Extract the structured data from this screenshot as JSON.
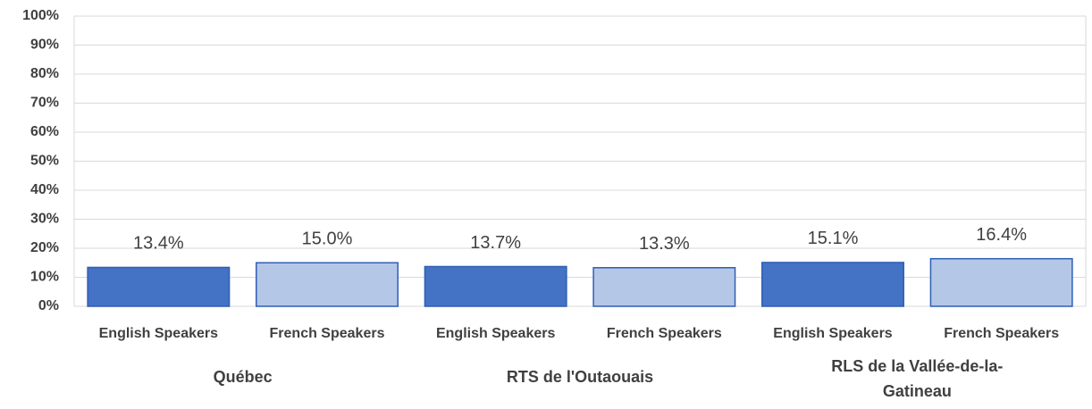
{
  "chart_data": {
    "type": "bar",
    "categories": [
      "English Speakers",
      "French Speakers",
      "English Speakers",
      "French Speakers",
      "English Speakers",
      "French Speakers"
    ],
    "groups": [
      "Québec",
      "RTS de l'Outaouais",
      "RLS de la Vallée-de-la-Gatineau"
    ],
    "values": [
      13.4,
      15.0,
      13.7,
      13.3,
      15.1,
      16.4
    ],
    "value_labels": [
      "13.4%",
      "15.0%",
      "13.7%",
      "13.3%",
      "15.1%",
      "16.4%"
    ],
    "colors": [
      "#4472c4",
      "#b4c7e7",
      "#4472c4",
      "#b4c7e7",
      "#4472c4",
      "#b4c7e7"
    ],
    "ylim": [
      0,
      100
    ],
    "yticks": [
      {
        "value": 0,
        "label": "0%"
      },
      {
        "value": 10,
        "label": "10%"
      },
      {
        "value": 20,
        "label": "20%"
      },
      {
        "value": 30,
        "label": "30%"
      },
      {
        "value": 40,
        "label": "40%"
      },
      {
        "value": 50,
        "label": "50%"
      },
      {
        "value": 60,
        "label": "60%"
      },
      {
        "value": 70,
        "label": "70%"
      },
      {
        "value": 80,
        "label": "80%"
      },
      {
        "value": 90,
        "label": "90%"
      },
      {
        "value": 100,
        "label": "100%"
      }
    ],
    "grid": true
  }
}
